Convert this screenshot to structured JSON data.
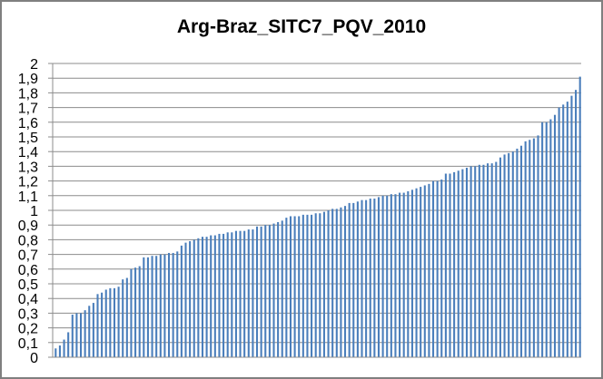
{
  "chart_data": {
    "type": "bar",
    "title": "Arg-Braz_SITC7_PQV_2010",
    "xlabel": "",
    "ylabel": "",
    "ylim": [
      0,
      2
    ],
    "y_ticks": [
      "0",
      "0,1",
      "0,2",
      "0,3",
      "0,4",
      "0,5",
      "0,6",
      "0,7",
      "0,8",
      "0,9",
      "1",
      "1,1",
      "1,2",
      "1,3",
      "1,4",
      "1,5",
      "1,6",
      "1,7",
      "1,8",
      "1,9",
      "2"
    ],
    "grid": true,
    "legend": "none",
    "colors": {
      "bar": "#4a7ebb",
      "grid": "#8c8c8c",
      "axis": "#8c8c8c",
      "frame": "#7f7f7f"
    },
    "values": [
      0.06,
      0.08,
      0.12,
      0.17,
      0.29,
      0.3,
      0.3,
      0.32,
      0.35,
      0.37,
      0.43,
      0.44,
      0.46,
      0.47,
      0.47,
      0.48,
      0.53,
      0.54,
      0.6,
      0.61,
      0.62,
      0.68,
      0.68,
      0.69,
      0.69,
      0.7,
      0.7,
      0.71,
      0.71,
      0.72,
      0.76,
      0.78,
      0.79,
      0.8,
      0.81,
      0.82,
      0.82,
      0.83,
      0.83,
      0.84,
      0.84,
      0.85,
      0.85,
      0.86,
      0.86,
      0.86,
      0.87,
      0.87,
      0.89,
      0.89,
      0.9,
      0.9,
      0.91,
      0.92,
      0.93,
      0.95,
      0.96,
      0.96,
      0.96,
      0.97,
      0.97,
      0.97,
      0.98,
      0.98,
      0.99,
      1.0,
      1.01,
      1.01,
      1.02,
      1.03,
      1.05,
      1.05,
      1.06,
      1.07,
      1.07,
      1.08,
      1.08,
      1.09,
      1.1,
      1.1,
      1.11,
      1.11,
      1.12,
      1.12,
      1.13,
      1.14,
      1.15,
      1.16,
      1.17,
      1.18,
      1.2,
      1.2,
      1.21,
      1.25,
      1.25,
      1.26,
      1.27,
      1.28,
      1.29,
      1.3,
      1.3,
      1.31,
      1.31,
      1.32,
      1.32,
      1.33,
      1.36,
      1.38,
      1.39,
      1.4,
      1.42,
      1.44,
      1.47,
      1.48,
      1.49,
      1.51,
      1.6,
      1.6,
      1.62,
      1.65,
      1.7,
      1.72,
      1.74,
      1.78,
      1.82,
      1.91
    ]
  }
}
